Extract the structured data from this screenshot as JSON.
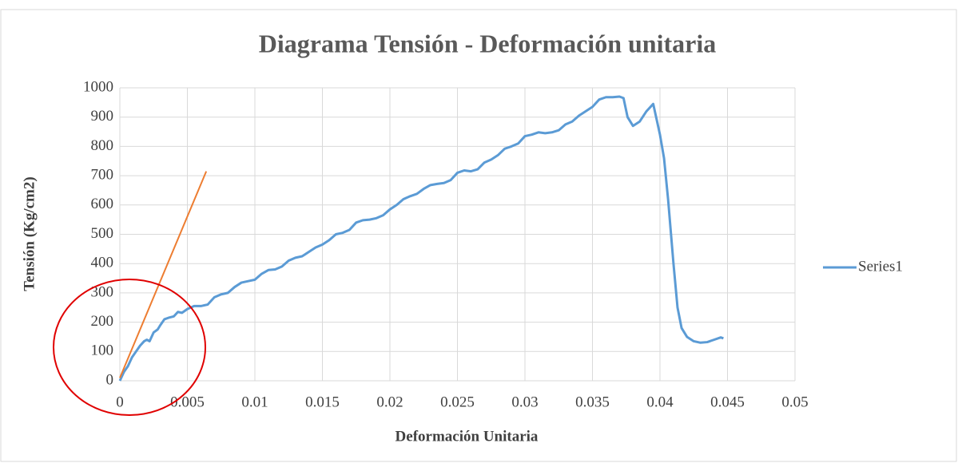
{
  "chart_data": {
    "type": "line",
    "title": "Diagrama Tensión - Deformación unitaria",
    "x_label": "Deformación Unitaria",
    "y_label": "Tensión (Kg/cm2)",
    "xlim": [
      0,
      0.05
    ],
    "xticks": [
      0,
      0.005,
      0.01,
      0.015,
      0.02,
      0.025,
      0.03,
      0.035,
      0.04,
      0.045,
      0.05
    ],
    "ylim": [
      0,
      1000
    ],
    "yticks": [
      0,
      100,
      200,
      300,
      400,
      500,
      600,
      700,
      800,
      900,
      1000
    ],
    "grid": true,
    "legend": "right",
    "series": [
      {
        "name": "Series1",
        "color": "#5b9bd5",
        "x": [
          0,
          0.0003,
          0.0006,
          0.0009,
          0.0012,
          0.0015,
          0.0018,
          0.002,
          0.0022,
          0.0025,
          0.0028,
          0.003,
          0.0033,
          0.0036,
          0.004,
          0.0043,
          0.0046,
          0.005,
          0.0055,
          0.006,
          0.0065,
          0.007,
          0.0075,
          0.008,
          0.0085,
          0.009,
          0.0095,
          0.01,
          0.0105,
          0.011,
          0.0115,
          0.012,
          0.0125,
          0.013,
          0.0135,
          0.014,
          0.0145,
          0.015,
          0.0155,
          0.016,
          0.0165,
          0.017,
          0.0175,
          0.018,
          0.0185,
          0.019,
          0.0195,
          0.02,
          0.0205,
          0.021,
          0.0215,
          0.022,
          0.0225,
          0.023,
          0.0235,
          0.024,
          0.0245,
          0.025,
          0.0255,
          0.026,
          0.0265,
          0.027,
          0.0275,
          0.028,
          0.0285,
          0.029,
          0.0295,
          0.03,
          0.0305,
          0.031,
          0.0315,
          0.032,
          0.0325,
          0.033,
          0.0335,
          0.034,
          0.0345,
          0.035,
          0.0355,
          0.036,
          0.0365,
          0.037,
          0.0373,
          0.0376,
          0.038,
          0.0385,
          0.039,
          0.0395,
          0.04,
          0.0403,
          0.0406,
          0.041,
          0.0413,
          0.0416,
          0.042,
          0.0425,
          0.043,
          0.0435,
          0.044,
          0.0445,
          0.0447
        ],
        "values": [
          0,
          30,
          50,
          80,
          100,
          120,
          135,
          140,
          135,
          165,
          175,
          190,
          210,
          215,
          220,
          235,
          232,
          245,
          255,
          255,
          260,
          285,
          295,
          300,
          320,
          335,
          340,
          345,
          365,
          378,
          380,
          390,
          410,
          420,
          425,
          440,
          455,
          465,
          480,
          500,
          505,
          515,
          540,
          548,
          550,
          555,
          565,
          585,
          600,
          620,
          630,
          638,
          655,
          668,
          672,
          675,
          685,
          710,
          718,
          715,
          722,
          745,
          755,
          770,
          792,
          800,
          810,
          835,
          840,
          848,
          845,
          848,
          855,
          875,
          885,
          905,
          920,
          935,
          960,
          968,
          968,
          970,
          965,
          900,
          870,
          885,
          920,
          945,
          840,
          760,
          620,
          400,
          250,
          180,
          150,
          135,
          130,
          132,
          140,
          148,
          145
        ]
      },
      {
        "color": "#ed7d31",
        "x": [
          0,
          0.0064
        ],
        "values": [
          10,
          715
        ]
      }
    ]
  }
}
